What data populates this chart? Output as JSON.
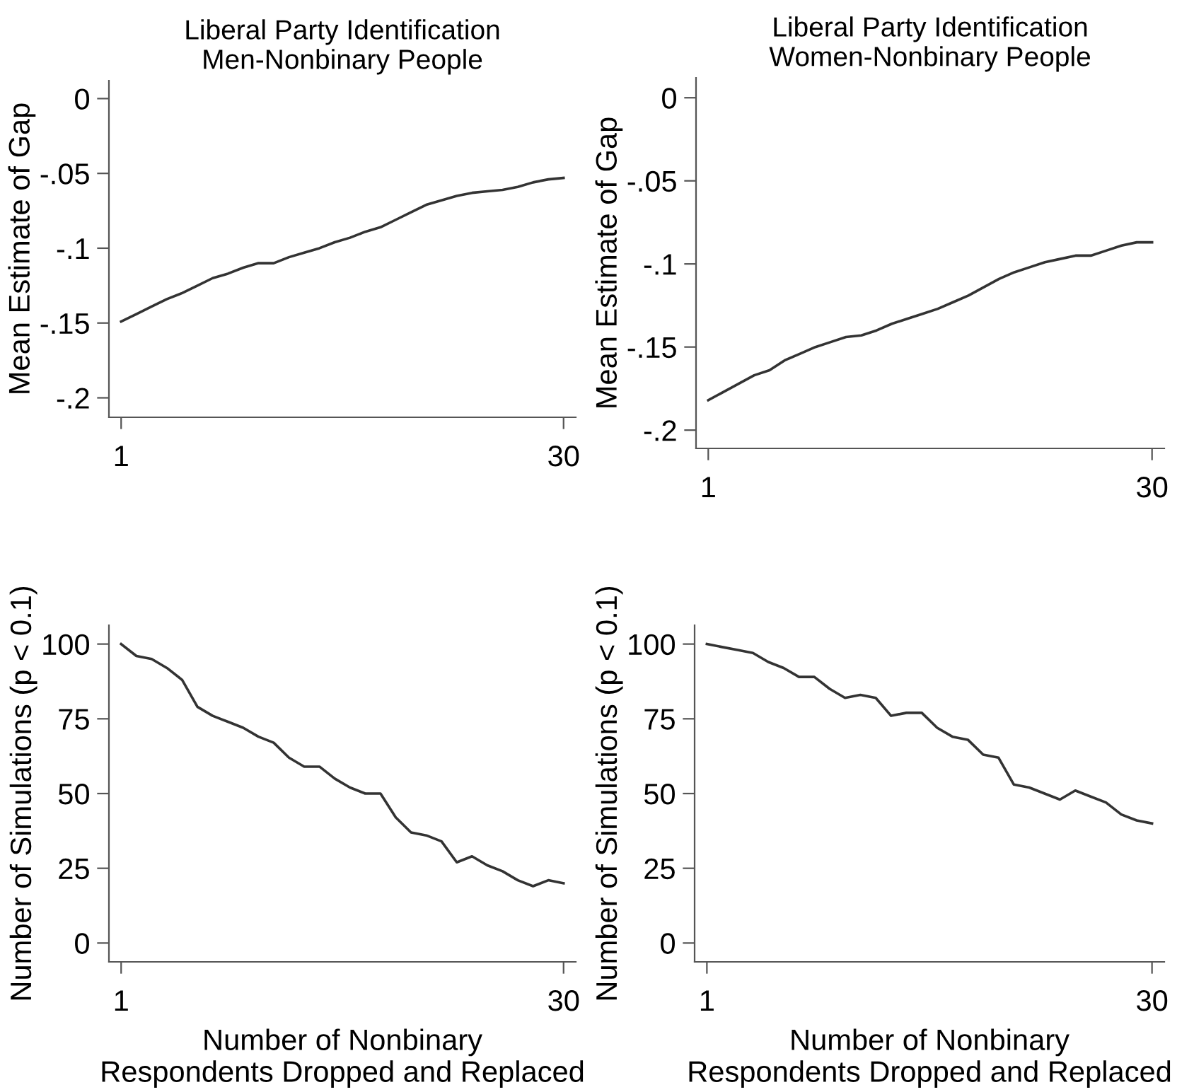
{
  "chart_data": [
    {
      "type": "line",
      "title": "Liberal Party Identification\nMen-Nonbinary People",
      "ylabel": "Mean Estimate of Gap",
      "x": [
        1,
        2,
        3,
        4,
        5,
        6,
        7,
        8,
        9,
        10,
        11,
        12,
        13,
        14,
        15,
        16,
        17,
        18,
        19,
        20,
        21,
        22,
        23,
        24,
        25,
        26,
        27,
        28,
        29,
        30
      ],
      "series": [
        {
          "color": "#333333",
          "values": [
            -0.149,
            -0.144,
            -0.139,
            -0.134,
            -0.13,
            -0.125,
            -0.12,
            -0.117,
            -0.113,
            -0.11,
            -0.11,
            -0.106,
            -0.103,
            -0.1,
            -0.096,
            -0.093,
            -0.089,
            -0.086,
            -0.081,
            -0.076,
            -0.071,
            -0.068,
            -0.065,
            -0.063,
            -0.062,
            -0.061,
            -0.059,
            -0.056,
            -0.054,
            -0.053
          ]
        }
      ],
      "xlim": [
        0.2,
        30.8
      ],
      "xticks": [
        1,
        30
      ],
      "ylim": [
        -0.213,
        0.012
      ],
      "yticks": [
        0,
        {
          "value": -0.05,
          "label": "-.05"
        },
        {
          "value": -0.1,
          "label": "-.1"
        },
        {
          "value": -0.15,
          "label": "-.15"
        },
        {
          "value": -0.2,
          "label": "-.2"
        }
      ],
      "grid": false,
      "legend": false,
      "line_style": "solid"
    },
    {
      "type": "line",
      "title": "Liberal Party Identification\nWomen-Nonbinary People",
      "ylabel": "Mean Estimate of Gap",
      "x": [
        1,
        2,
        3,
        4,
        5,
        6,
        7,
        8,
        9,
        10,
        11,
        12,
        13,
        14,
        15,
        16,
        17,
        18,
        19,
        20,
        21,
        22,
        23,
        24,
        25,
        26,
        27,
        28,
        29,
        30
      ],
      "series": [
        {
          "color": "#333333",
          "values": [
            -0.182,
            -0.177,
            -0.172,
            -0.167,
            -0.164,
            -0.158,
            -0.154,
            -0.15,
            -0.147,
            -0.144,
            -0.143,
            -0.14,
            -0.136,
            -0.133,
            -0.13,
            -0.127,
            -0.123,
            -0.119,
            -0.114,
            -0.109,
            -0.105,
            -0.102,
            -0.099,
            -0.097,
            -0.095,
            -0.095,
            -0.092,
            -0.089,
            -0.087,
            -0.087
          ]
        }
      ],
      "xlim": [
        0.2,
        30.8
      ],
      "xticks": [
        1,
        30
      ],
      "ylim": [
        -0.211,
        0.012
      ],
      "yticks": [
        0,
        {
          "value": -0.05,
          "label": "-.05"
        },
        {
          "value": -0.1,
          "label": "-.1"
        },
        {
          "value": -0.15,
          "label": "-.15"
        },
        {
          "value": -0.2,
          "label": "-.2"
        }
      ],
      "grid": false,
      "legend": false,
      "line_style": "solid"
    },
    {
      "type": "line",
      "xlabel": "Number of Nonbinary\nRespondents Dropped and Replaced",
      "ylabel": "Number of Simulations (p < 0.1)",
      "x": [
        1,
        2,
        3,
        4,
        5,
        6,
        7,
        8,
        9,
        10,
        11,
        12,
        13,
        14,
        15,
        16,
        17,
        18,
        19,
        20,
        21,
        22,
        23,
        24,
        25,
        26,
        27,
        28,
        29,
        30
      ],
      "series": [
        {
          "color": "#333333",
          "values": [
            100,
            96,
            95,
            92,
            88,
            79,
            76,
            74,
            72,
            69,
            67,
            62,
            59,
            59,
            55,
            52,
            50,
            50,
            42,
            37,
            36,
            34,
            27,
            29,
            26,
            24,
            21,
            19,
            21,
            20
          ]
        }
      ],
      "xlim": [
        0.2,
        30.8
      ],
      "xticks": [
        1,
        30
      ],
      "ylim": [
        -6.3,
        106.3
      ],
      "yticks": [
        0,
        25,
        50,
        75,
        100
      ],
      "grid": false,
      "legend": false,
      "line_style": "solid"
    },
    {
      "type": "line",
      "xlabel": "Number of Nonbinary\nRespondents Dropped and Replaced",
      "ylabel": "Number of Simulations (p < 0.1)",
      "x": [
        1,
        2,
        3,
        4,
        5,
        6,
        7,
        8,
        9,
        10,
        11,
        12,
        13,
        14,
        15,
        16,
        17,
        18,
        19,
        20,
        21,
        22,
        23,
        24,
        25,
        26,
        27,
        28,
        29,
        30
      ],
      "series": [
        {
          "color": "#333333",
          "values": [
            100,
            99,
            98,
            97,
            94,
            92,
            89,
            89,
            85,
            82,
            83,
            82,
            76,
            77,
            77,
            72,
            69,
            68,
            63,
            62,
            53,
            52,
            50,
            48,
            51,
            49,
            47,
            43,
            41,
            40
          ]
        }
      ],
      "xlim": [
        0.2,
        30.8
      ],
      "xticks": [
        1,
        30
      ],
      "ylim": [
        -6.3,
        106.3
      ],
      "yticks": [
        0,
        25,
        50,
        75,
        100
      ],
      "grid": false,
      "legend": false,
      "line_style": "solid"
    }
  ]
}
